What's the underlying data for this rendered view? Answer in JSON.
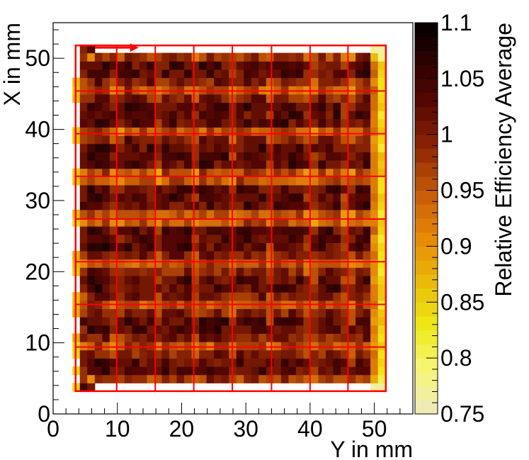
{
  "chart_data": {
    "type": "heatmap",
    "title": "",
    "xlabel": "Y in mm",
    "ylabel": "X in mm",
    "zlabel": "Relative Efficiency Average",
    "xlim": [
      0,
      56
    ],
    "ylim": [
      0,
      55
    ],
    "zlim": [
      0.75,
      1.1
    ],
    "x_ticks": [
      "0",
      "10",
      "20",
      "30",
      "40",
      "50"
    ],
    "x_tick_values": [
      0,
      10,
      20,
      30,
      40,
      50
    ],
    "y_ticks": [
      "0",
      "10",
      "20",
      "30",
      "40",
      "50"
    ],
    "y_tick_values": [
      0,
      10,
      20,
      30,
      40,
      50
    ],
    "z_ticks": [
      "0.75",
      "0.8",
      "0.85",
      "0.9",
      "0.95",
      "1",
      "1.05",
      "1.1"
    ],
    "z_tick_values": [
      0.75,
      0.8,
      0.85,
      0.9,
      0.95,
      1.0,
      1.05,
      1.1
    ],
    "grid": false,
    "cell_size_mm": 1.16,
    "map_extent_mm": {
      "y": [
        3.0,
        52.0
      ],
      "x": [
        3.2,
        52.0
      ]
    },
    "overlay": {
      "outer_box_mm": {
        "y": [
          3.5,
          51.8
        ],
        "x": [
          3.2,
          51.8
        ]
      },
      "vertical_lines_mm": [
        9.9,
        15.9,
        21.9,
        27.9,
        34.0,
        40.0,
        45.9
      ],
      "horizontal_lines_mm": [
        9.4,
        15.4,
        21.4,
        27.4,
        33.4,
        39.4,
        45.4
      ],
      "arrow_mm": {
        "y_from": 6.5,
        "y_to": 13.3,
        "x": 51.5
      },
      "color": "#ff0000"
    },
    "summary": {
      "interior_typical": 1.03,
      "grid_line_typical": 0.95,
      "left_edge_typical": 0.86,
      "right_edge_typical": 0.84,
      "corner_min": 0.75
    }
  }
}
